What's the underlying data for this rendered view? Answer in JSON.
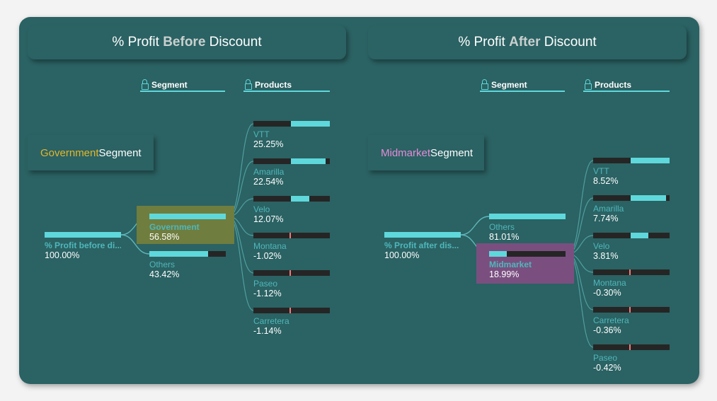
{
  "left": {
    "title_prefix": "% Profit ",
    "title_emphasis": "Before",
    "title_suffix": " Discount",
    "callout_highlight": "Government",
    "callout_rest": " Segment",
    "callout_color": "#e2b72b",
    "headers": {
      "segment": "Segment",
      "products": "Products"
    },
    "root": {
      "label": "% Profit before di...",
      "value": "100.00%"
    },
    "segments": [
      {
        "label": "Government",
        "value": "56.58%",
        "fraction": 0.5658,
        "selected": true
      },
      {
        "label": "Others",
        "value": "43.42%",
        "fraction": 0.4342,
        "selected": false
      }
    ],
    "products": [
      {
        "label": "VTT",
        "value": "25.25%",
        "pct": 25.25
      },
      {
        "label": "Amarilla",
        "value": "22.54%",
        "pct": 22.54
      },
      {
        "label": "Velo",
        "value": "12.07%",
        "pct": 12.07
      },
      {
        "label": "Montana",
        "value": "-1.02%",
        "pct": -1.02
      },
      {
        "label": "Paseo",
        "value": "-1.12%",
        "pct": -1.12
      },
      {
        "label": "Carretera",
        "value": "-1.14%",
        "pct": -1.14
      }
    ],
    "highlight_color": "#6f7d3e"
  },
  "right": {
    "title_prefix": "% Profit ",
    "title_emphasis": "After",
    "title_suffix": " Discount",
    "callout_highlight": "Midmarket",
    "callout_rest": " Segment",
    "callout_color": "#e58bd8",
    "headers": {
      "segment": "Segment",
      "products": "Products"
    },
    "root": {
      "label": "% Profit after dis...",
      "value": "100.00%"
    },
    "segments": [
      {
        "label": "Others",
        "value": "81.01%",
        "fraction": 0.8101,
        "selected": false
      },
      {
        "label": "Midmarket",
        "value": "18.99%",
        "fraction": 0.1899,
        "selected": true
      }
    ],
    "products": [
      {
        "label": "VTT",
        "value": "8.52%",
        "pct": 8.52
      },
      {
        "label": "Amarilla",
        "value": "7.74%",
        "pct": 7.74
      },
      {
        "label": "Velo",
        "value": "3.81%",
        "pct": 3.81
      },
      {
        "label": "Montana",
        "value": "-0.30%",
        "pct": -0.3
      },
      {
        "label": "Carretera",
        "value": "-0.36%",
        "pct": -0.36
      },
      {
        "label": "Paseo",
        "value": "-0.42%",
        "pct": -0.42
      }
    ],
    "highlight_color": "#7a4f80"
  },
  "colors": {
    "bar_fill": "#5fd8dc",
    "bar_track": "#252525",
    "negative": "#f07a7a",
    "panel": "#2b6263"
  }
}
